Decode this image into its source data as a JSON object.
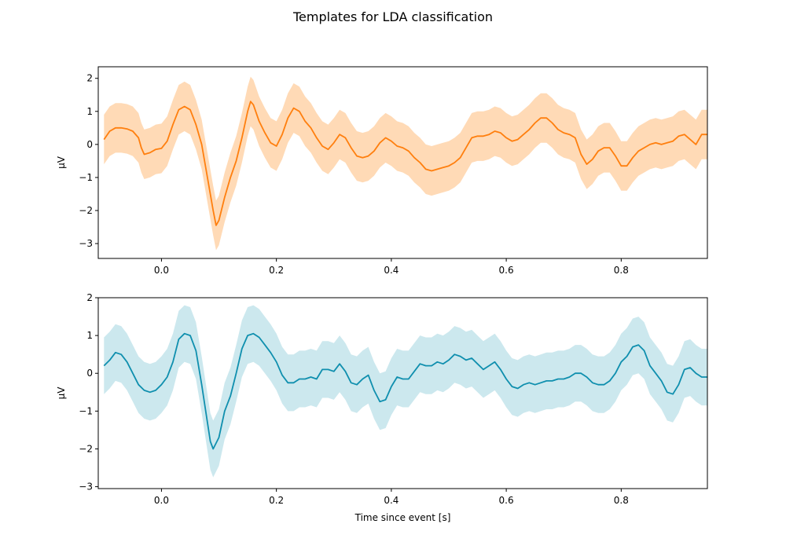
{
  "figure": {
    "title": "Templates for LDA classification"
  },
  "chart_data": [
    {
      "type": "line",
      "title": "",
      "xlabel": "",
      "ylabel": "μV",
      "xlim": [
        -0.11,
        0.95
      ],
      "ylim": [
        -3.45,
        2.35
      ],
      "xticks": [
        0.0,
        0.2,
        0.4,
        0.6,
        0.8
      ],
      "xtick_labels": [
        "0.0",
        "0.2",
        "0.4",
        "0.6",
        "0.8"
      ],
      "yticks": [
        -3,
        -2,
        -1,
        0,
        1,
        2
      ],
      "ytick_labels": [
        "−3",
        "−2",
        "−1",
        "0",
        "1",
        "2"
      ],
      "grid": false,
      "legend": "none",
      "color": "#ff7f0e",
      "band_color": "#ffdab6",
      "series": [
        {
          "points": [
            [
              -0.1,
              0.15
            ],
            [
              -0.09,
              0.4
            ],
            [
              -0.08,
              0.5
            ],
            [
              -0.07,
              0.5
            ],
            [
              -0.06,
              0.47
            ],
            [
              -0.05,
              0.4
            ],
            [
              -0.04,
              0.2
            ],
            [
              -0.035,
              -0.1
            ],
            [
              -0.03,
              -0.3
            ],
            [
              -0.02,
              -0.25
            ],
            [
              -0.01,
              -0.15
            ],
            [
              0.0,
              -0.12
            ],
            [
              0.01,
              0.1
            ],
            [
              0.02,
              0.6
            ],
            [
              0.03,
              1.05
            ],
            [
              0.04,
              1.15
            ],
            [
              0.05,
              1.05
            ],
            [
              0.06,
              0.6
            ],
            [
              0.07,
              0.0
            ],
            [
              0.08,
              -1.0
            ],
            [
              0.09,
              -2.0
            ],
            [
              0.095,
              -2.45
            ],
            [
              0.1,
              -2.3
            ],
            [
              0.11,
              -1.6
            ],
            [
              0.12,
              -1.0
            ],
            [
              0.13,
              -0.5
            ],
            [
              0.14,
              0.2
            ],
            [
              0.15,
              1.0
            ],
            [
              0.155,
              1.3
            ],
            [
              0.16,
              1.2
            ],
            [
              0.17,
              0.7
            ],
            [
              0.18,
              0.35
            ],
            [
              0.19,
              0.05
            ],
            [
              0.2,
              -0.05
            ],
            [
              0.21,
              0.3
            ],
            [
              0.22,
              0.8
            ],
            [
              0.23,
              1.1
            ],
            [
              0.24,
              1.0
            ],
            [
              0.25,
              0.7
            ],
            [
              0.26,
              0.5
            ],
            [
              0.27,
              0.2
            ],
            [
              0.28,
              -0.05
            ],
            [
              0.29,
              -0.15
            ],
            [
              0.3,
              0.05
            ],
            [
              0.31,
              0.3
            ],
            [
              0.32,
              0.2
            ],
            [
              0.33,
              -0.1
            ],
            [
              0.34,
              -0.35
            ],
            [
              0.35,
              -0.4
            ],
            [
              0.36,
              -0.35
            ],
            [
              0.37,
              -0.2
            ],
            [
              0.38,
              0.05
            ],
            [
              0.39,
              0.2
            ],
            [
              0.4,
              0.1
            ],
            [
              0.41,
              -0.05
            ],
            [
              0.42,
              -0.1
            ],
            [
              0.43,
              -0.2
            ],
            [
              0.44,
              -0.4
            ],
            [
              0.45,
              -0.55
            ],
            [
              0.46,
              -0.75
            ],
            [
              0.47,
              -0.8
            ],
            [
              0.48,
              -0.75
            ],
            [
              0.49,
              -0.7
            ],
            [
              0.5,
              -0.65
            ],
            [
              0.51,
              -0.55
            ],
            [
              0.52,
              -0.4
            ],
            [
              0.53,
              -0.1
            ],
            [
              0.54,
              0.2
            ],
            [
              0.55,
              0.25
            ],
            [
              0.56,
              0.25
            ],
            [
              0.57,
              0.3
            ],
            [
              0.58,
              0.4
            ],
            [
              0.59,
              0.35
            ],
            [
              0.6,
              0.2
            ],
            [
              0.61,
              0.1
            ],
            [
              0.62,
              0.15
            ],
            [
              0.63,
              0.3
            ],
            [
              0.64,
              0.45
            ],
            [
              0.65,
              0.65
            ],
            [
              0.66,
              0.8
            ],
            [
              0.67,
              0.8
            ],
            [
              0.68,
              0.65
            ],
            [
              0.69,
              0.45
            ],
            [
              0.7,
              0.35
            ],
            [
              0.71,
              0.3
            ],
            [
              0.72,
              0.2
            ],
            [
              0.73,
              -0.3
            ],
            [
              0.74,
              -0.6
            ],
            [
              0.75,
              -0.45
            ],
            [
              0.76,
              -0.2
            ],
            [
              0.77,
              -0.1
            ],
            [
              0.78,
              -0.1
            ],
            [
              0.79,
              -0.35
            ],
            [
              0.8,
              -0.65
            ],
            [
              0.81,
              -0.65
            ],
            [
              0.82,
              -0.4
            ],
            [
              0.83,
              -0.2
            ],
            [
              0.84,
              -0.1
            ],
            [
              0.85,
              0.0
            ],
            [
              0.86,
              0.05
            ],
            [
              0.87,
              0.0
            ],
            [
              0.88,
              0.05
            ],
            [
              0.89,
              0.1
            ],
            [
              0.9,
              0.25
            ],
            [
              0.91,
              0.3
            ],
            [
              0.92,
              0.15
            ],
            [
              0.93,
              0.0
            ],
            [
              0.94,
              0.3
            ],
            [
              0.95,
              0.3
            ]
          ],
          "band_halfwidth": 0.75
        }
      ]
    },
    {
      "type": "line",
      "title": "",
      "xlabel": "Time since event [s]",
      "ylabel": "μV",
      "xlim": [
        -0.11,
        0.95
      ],
      "ylim": [
        -3.05,
        2.0
      ],
      "xticks": [
        0.0,
        0.2,
        0.4,
        0.6,
        0.8
      ],
      "xtick_labels": [
        "0.0",
        "0.2",
        "0.4",
        "0.6",
        "0.8"
      ],
      "yticks": [
        -3,
        -2,
        -1,
        0,
        1,
        2
      ],
      "ytick_labels": [
        "−3",
        "−2",
        "−1",
        "0",
        "1",
        "2"
      ],
      "grid": false,
      "legend": "none",
      "color": "#0f8fae",
      "band_color": "#cce8ee",
      "series": [
        {
          "points": [
            [
              -0.1,
              0.2
            ],
            [
              -0.09,
              0.35
            ],
            [
              -0.08,
              0.55
            ],
            [
              -0.07,
              0.5
            ],
            [
              -0.06,
              0.3
            ],
            [
              -0.05,
              0.0
            ],
            [
              -0.04,
              -0.3
            ],
            [
              -0.03,
              -0.45
            ],
            [
              -0.02,
              -0.5
            ],
            [
              -0.01,
              -0.45
            ],
            [
              0.0,
              -0.3
            ],
            [
              0.01,
              -0.1
            ],
            [
              0.02,
              0.3
            ],
            [
              0.03,
              0.9
            ],
            [
              0.04,
              1.05
            ],
            [
              0.05,
              1.0
            ],
            [
              0.06,
              0.6
            ],
            [
              0.07,
              -0.3
            ],
            [
              0.08,
              -1.3
            ],
            [
              0.085,
              -1.8
            ],
            [
              0.09,
              -2.0
            ],
            [
              0.1,
              -1.7
            ],
            [
              0.11,
              -1.0
            ],
            [
              0.12,
              -0.6
            ],
            [
              0.13,
              0.0
            ],
            [
              0.14,
              0.65
            ],
            [
              0.15,
              1.0
            ],
            [
              0.16,
              1.05
            ],
            [
              0.17,
              0.95
            ],
            [
              0.18,
              0.75
            ],
            [
              0.19,
              0.55
            ],
            [
              0.2,
              0.3
            ],
            [
              0.21,
              -0.05
            ],
            [
              0.22,
              -0.25
            ],
            [
              0.23,
              -0.25
            ],
            [
              0.24,
              -0.15
            ],
            [
              0.25,
              -0.15
            ],
            [
              0.26,
              -0.1
            ],
            [
              0.27,
              -0.15
            ],
            [
              0.28,
              0.1
            ],
            [
              0.29,
              0.1
            ],
            [
              0.3,
              0.05
            ],
            [
              0.31,
              0.25
            ],
            [
              0.32,
              0.05
            ],
            [
              0.33,
              -0.25
            ],
            [
              0.34,
              -0.3
            ],
            [
              0.35,
              -0.15
            ],
            [
              0.36,
              -0.05
            ],
            [
              0.37,
              -0.45
            ],
            [
              0.38,
              -0.75
            ],
            [
              0.39,
              -0.7
            ],
            [
              0.4,
              -0.35
            ],
            [
              0.41,
              -0.1
            ],
            [
              0.42,
              -0.15
            ],
            [
              0.43,
              -0.15
            ],
            [
              0.44,
              0.05
            ],
            [
              0.45,
              0.25
            ],
            [
              0.46,
              0.2
            ],
            [
              0.47,
              0.2
            ],
            [
              0.48,
              0.3
            ],
            [
              0.49,
              0.25
            ],
            [
              0.5,
              0.35
            ],
            [
              0.51,
              0.5
            ],
            [
              0.52,
              0.45
            ],
            [
              0.53,
              0.35
            ],
            [
              0.54,
              0.4
            ],
            [
              0.55,
              0.25
            ],
            [
              0.56,
              0.1
            ],
            [
              0.57,
              0.2
            ],
            [
              0.58,
              0.3
            ],
            [
              0.59,
              0.1
            ],
            [
              0.6,
              -0.15
            ],
            [
              0.61,
              -0.35
            ],
            [
              0.62,
              -0.4
            ],
            [
              0.63,
              -0.3
            ],
            [
              0.64,
              -0.25
            ],
            [
              0.65,
              -0.3
            ],
            [
              0.66,
              -0.25
            ],
            [
              0.67,
              -0.2
            ],
            [
              0.68,
              -0.2
            ],
            [
              0.69,
              -0.15
            ],
            [
              0.7,
              -0.15
            ],
            [
              0.71,
              -0.1
            ],
            [
              0.72,
              0.0
            ],
            [
              0.73,
              0.0
            ],
            [
              0.74,
              -0.1
            ],
            [
              0.75,
              -0.25
            ],
            [
              0.76,
              -0.3
            ],
            [
              0.77,
              -0.3
            ],
            [
              0.78,
              -0.2
            ],
            [
              0.79,
              0.0
            ],
            [
              0.8,
              0.3
            ],
            [
              0.81,
              0.45
            ],
            [
              0.82,
              0.7
            ],
            [
              0.83,
              0.75
            ],
            [
              0.84,
              0.6
            ],
            [
              0.85,
              0.2
            ],
            [
              0.86,
              0.0
            ],
            [
              0.87,
              -0.2
            ],
            [
              0.88,
              -0.5
            ],
            [
              0.89,
              -0.55
            ],
            [
              0.9,
              -0.3
            ],
            [
              0.91,
              0.1
            ],
            [
              0.92,
              0.15
            ],
            [
              0.93,
              0.0
            ],
            [
              0.94,
              -0.1
            ],
            [
              0.95,
              -0.1
            ]
          ],
          "band_halfwidth": 0.75
        }
      ]
    }
  ]
}
